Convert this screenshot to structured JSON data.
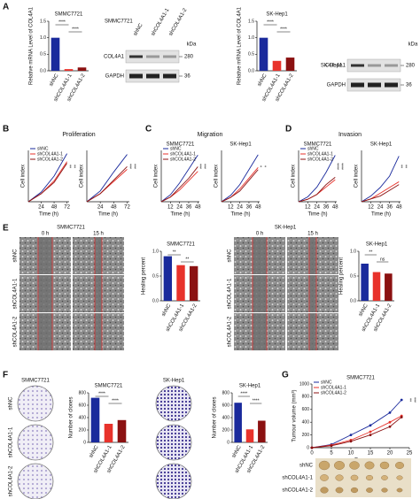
{
  "chart_data": [
    {
      "type": "bar",
      "title": "SMMC7721",
      "y_label": "Relative mRNA Level of COL4A1",
      "categories": [
        "shNC",
        "shCOL4A1-1",
        "shCOL4A1-2"
      ],
      "values": [
        1.0,
        0.05,
        0.1
      ],
      "colors": [
        "#1a2a9c",
        "#e8322b",
        "#8b1111"
      ],
      "ylim": [
        0,
        1.5
      ],
      "yticks": [
        {
          "value": 0,
          "label": "0.0"
        },
        {
          "value": 0.5,
          "label": "0.5"
        },
        {
          "value": 1.0,
          "label": "1.0"
        },
        {
          "value": 1.5,
          "label": "1.5"
        }
      ],
      "annotations": [
        "****",
        "****"
      ]
    },
    {
      "type": "bar",
      "title": "SK-Hep1",
      "y_label": "Relative mRNA Level of COL4A1",
      "categories": [
        "shNC",
        "shCOL4A1-1",
        "shCOL4A1-2"
      ],
      "values": [
        1.0,
        0.3,
        0.4
      ],
      "colors": [
        "#1a2a9c",
        "#e8322b",
        "#8b1111"
      ],
      "ylim": [
        0,
        1.5
      ],
      "yticks": [
        {
          "value": 0,
          "label": "0.0"
        },
        {
          "value": 0.5,
          "label": "0.5"
        },
        {
          "value": 1.0,
          "label": "1.0"
        },
        {
          "value": 1.5,
          "label": "1.5"
        }
      ],
      "annotations": [
        "****",
        "****"
      ]
    },
    {
      "type": "line",
      "x_label": "Time (h)",
      "y_label": "Cell index",
      "x": [
        0,
        24,
        48,
        72
      ],
      "xlim": [
        0,
        76
      ],
      "xticks": [
        24,
        48,
        72
      ],
      "ylim": [
        0,
        3.2
      ],
      "series": [
        {
          "name": "shNC",
          "color": "#1a2a9c",
          "values": [
            0,
            0.6,
            1.6,
            3.0
          ]
        },
        {
          "name": "shCOL4A1-1",
          "color": "#e8322b",
          "values": [
            0,
            0.5,
            1.3,
            2.5
          ]
        },
        {
          "name": "shCOL4A1-2",
          "color": "#8b1111",
          "values": [
            0,
            0.5,
            1.2,
            2.4
          ]
        }
      ],
      "annotations": [
        "**",
        "**"
      ]
    },
    {
      "type": "line",
      "x_label": "Time (h)",
      "y_label": "Cell index",
      "x": [
        0,
        24,
        48,
        72
      ],
      "xlim": [
        0,
        76
      ],
      "xticks": [
        24,
        48,
        72
      ],
      "ylim": [
        0,
        3.8
      ],
      "series": [
        {
          "color": "#1a2a9c",
          "values": [
            0,
            0.8,
            2.2,
            3.5
          ]
        },
        {
          "color": "#e8322b",
          "values": [
            0,
            0.6,
            1.5,
            2.4
          ]
        },
        {
          "color": "#8b1111",
          "values": [
            0,
            0.6,
            1.6,
            2.6
          ]
        }
      ],
      "annotations": [
        "***",
        "***"
      ]
    },
    {
      "type": "line",
      "title": "SMMC7721",
      "x_label": "Time (h)",
      "y_label": "Cell index",
      "x": [
        0,
        12,
        24,
        36,
        48
      ],
      "xlim": [
        0,
        50
      ],
      "xticks": [
        12,
        24,
        36,
        48
      ],
      "ylim": [
        0,
        2.2
      ],
      "series": [
        {
          "name": "shNC",
          "color": "#1a2a9c",
          "values": [
            0,
            0.3,
            0.8,
            1.4,
            2.0
          ]
        },
        {
          "name": "shCOL4A1-1",
          "color": "#e8322b",
          "values": [
            0,
            0.2,
            0.5,
            0.9,
            1.3
          ]
        },
        {
          "name": "shCOL4A1-2",
          "color": "#8b1111",
          "values": [
            0,
            0.2,
            0.6,
            1.0,
            1.5
          ]
        }
      ],
      "annotations": [
        "***",
        "***"
      ]
    },
    {
      "type": "line",
      "title": "SK-Hep1",
      "x_label": "Time (h)",
      "y_label": "Cell index",
      "x": [
        0,
        12,
        24,
        36,
        48
      ],
      "xlim": [
        0,
        50
      ],
      "xticks": [
        12,
        24,
        36,
        48
      ],
      "ylim": [
        0,
        2.4
      ],
      "series": [
        {
          "color": "#1a2a9c",
          "values": [
            0,
            0.3,
            0.8,
            1.5,
            2.2
          ]
        },
        {
          "color": "#e8322b",
          "values": [
            0,
            0.2,
            0.6,
            1.1,
            1.6
          ]
        },
        {
          "color": "#8b1111",
          "values": [
            0,
            0.2,
            0.5,
            1.0,
            1.5
          ]
        }
      ],
      "annotations": [
        "*",
        "*"
      ]
    },
    {
      "type": "line",
      "title": "SMMC7721",
      "x_label": "Time (h)",
      "y_label": "Cell index",
      "x": [
        0,
        12,
        24,
        36,
        48
      ],
      "xlim": [
        0,
        50
      ],
      "xticks": [
        12,
        24,
        36,
        48
      ],
      "ylim": [
        0,
        2.1
      ],
      "series": [
        {
          "name": "shNC",
          "color": "#1a2a9c",
          "values": [
            0,
            0.2,
            0.6,
            1.2,
            1.9
          ]
        },
        {
          "name": "shCOL4A1-1",
          "color": "#e8322b",
          "values": [
            0,
            0.1,
            0.3,
            0.6,
            0.9
          ]
        },
        {
          "name": "shCOL4A1-2",
          "color": "#8b1111",
          "values": [
            0,
            0.1,
            0.3,
            0.7,
            1.0
          ]
        }
      ],
      "annotations": [
        "****",
        "****"
      ]
    },
    {
      "type": "line",
      "title": "SK-Hep1",
      "x_label": "Time (h)",
      "y_label": "Cell index",
      "x": [
        0,
        12,
        24,
        36,
        48
      ],
      "xlim": [
        0,
        50
      ],
      "xticks": [
        12,
        24,
        36,
        48
      ],
      "ylim": [
        0,
        1.8
      ],
      "series": [
        {
          "color": "#1a2a9c",
          "values": [
            0,
            0.2,
            0.5,
            0.9,
            1.6
          ]
        },
        {
          "color": "#e8322b",
          "values": [
            0,
            0.1,
            0.3,
            0.5,
            0.7
          ]
        },
        {
          "color": "#8b1111",
          "values": [
            0,
            0.1,
            0.2,
            0.4,
            0.6
          ]
        }
      ],
      "annotations": [
        "**",
        "**"
      ]
    },
    {
      "type": "bar",
      "title": "SMMC7721",
      "y_label": "Healing percent",
      "categories": [
        "shNC",
        "shCOL4A1-1",
        "shCOL4A1-2"
      ],
      "values": [
        0.9,
        0.72,
        0.7
      ],
      "colors": [
        "#1a2a9c",
        "#e8322b",
        "#8b1111"
      ],
      "ylim": [
        0,
        1.0
      ],
      "yticks": [
        {
          "value": 0,
          "label": "0.0"
        },
        {
          "value": 0.5,
          "label": "0.5"
        },
        {
          "value": 1.0,
          "label": "1.0"
        }
      ],
      "annotations": [
        "**",
        "**"
      ]
    },
    {
      "type": "bar",
      "title": "SK-Hep1",
      "y_label": "Healing percent",
      "categories": [
        "shNC",
        "shCOL4A1-1",
        "shCOL4A1-2"
      ],
      "values": [
        0.75,
        0.58,
        0.55
      ],
      "colors": [
        "#1a2a9c",
        "#e8322b",
        "#8b1111"
      ],
      "ylim": [
        0,
        1.0
      ],
      "yticks": [
        {
          "value": 0,
          "label": "0.0"
        },
        {
          "value": 0.5,
          "label": "0.5"
        },
        {
          "value": 1.0,
          "label": "1.0"
        }
      ],
      "annotations": [
        "**",
        "ns"
      ]
    },
    {
      "type": "bar",
      "title": "SMMC7721",
      "y_label": "Number of clones",
      "categories": [
        "shNC",
        "shCOL4A1-1",
        "shCOL4A1-2"
      ],
      "values": [
        720,
        300,
        360
      ],
      "colors": [
        "#1a2a9c",
        "#e8322b",
        "#8b1111"
      ],
      "ylim": [
        0,
        800
      ],
      "yticks": [
        0,
        200,
        400,
        600,
        800
      ],
      "annotations": [
        "****",
        "****"
      ]
    },
    {
      "type": "bar",
      "title": "SK-Hep1",
      "y_label": "Number of clones",
      "categories": [
        "shNC",
        "shCOL4A1-1",
        "shCOL4A1-2"
      ],
      "values": [
        640,
        210,
        350
      ],
      "colors": [
        "#1a2a9c",
        "#e8322b",
        "#8b1111"
      ],
      "ylim": [
        0,
        800
      ],
      "yticks": [
        0,
        200,
        400,
        600,
        800
      ],
      "annotations": [
        "****",
        "****"
      ]
    },
    {
      "type": "line",
      "title": "SMMC7721",
      "x_label": "Days",
      "y_label": "Tumour volume (mm³)",
      "x": [
        0,
        5,
        10,
        15,
        20,
        23
      ],
      "xlim": [
        0,
        25
      ],
      "xticks": [
        0,
        5,
        10,
        15,
        20,
        25
      ],
      "ylim": [
        0,
        1000
      ],
      "yticks": [
        0,
        200,
        400,
        600,
        800,
        1000
      ],
      "markers": true,
      "series": [
        {
          "name": "shNC",
          "color": "#1a2a9c",
          "values": [
            0,
            50,
            200,
            350,
            550,
            750
          ]
        },
        {
          "name": "shCOL4A1-1",
          "color": "#e8322b",
          "values": [
            0,
            40,
            120,
            250,
            400,
            500
          ]
        },
        {
          "name": "shCOL4A1-2",
          "color": "#8b1111",
          "values": [
            0,
            30,
            100,
            200,
            330,
            480
          ]
        }
      ],
      "annotations": [
        "**",
        "***"
      ]
    }
  ],
  "panels": {
    "letters": [
      "A",
      "B",
      "C",
      "D",
      "E",
      "F",
      "G"
    ],
    "headings": [
      "Proliferation",
      "Migration",
      "Invasion"
    ],
    "blots": [
      {
        "cell": "SMMC7721",
        "lanes": [
          "shNC",
          "shCOL4A1-1",
          "shCOL4A1-2"
        ],
        "unit": "kDa",
        "bands": [
          {
            "name": "COL4A1",
            "size": 280
          },
          {
            "name": "GAPDH",
            "size": 36
          }
        ]
      },
      {
        "cell": "SK-Hep1",
        "unit": "kDa",
        "bands": [
          {
            "name": "COL4A1",
            "size": 280
          },
          {
            "name": "GAPDH",
            "size": 36
          }
        ]
      }
    ],
    "wound": [
      {
        "cell": "SMMC7721",
        "times": [
          "0 h",
          "15 h"
        ],
        "rows": [
          "shNC",
          "shCOL4A1-1",
          "shCOL4A1-2"
        ]
      },
      {
        "cell": "SK-Hep1",
        "times": [
          "0 h",
          "15 h"
        ],
        "rows": [
          "shNC",
          "shCOL4A1-1",
          "shCOL4A1-2"
        ]
      }
    ],
    "colony": [
      {
        "cell": "SMMC7721",
        "rows": [
          "shNC",
          "shCOL4A1-1",
          "shCOL4A1-2"
        ]
      },
      {
        "cell": "SK-Hep1"
      }
    ],
    "tumor": {
      "rows": [
        "shNC",
        "shCOL4A1-1",
        "shCOL4A1-2"
      ]
    }
  }
}
